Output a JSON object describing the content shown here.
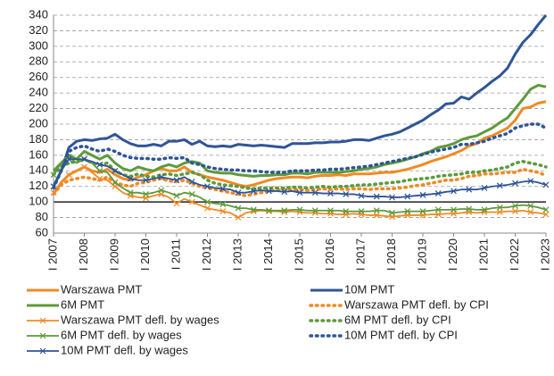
{
  "chart_data": {
    "type": "line",
    "categories": [
      "I 2007",
      null,
      null,
      null,
      "I 2008",
      null,
      null,
      null,
      "I 2009",
      null,
      null,
      null,
      "I 2010",
      null,
      null,
      null,
      "I 2011",
      null,
      null,
      null,
      "I 2012",
      null,
      null,
      null,
      "I 2013",
      null,
      null,
      null,
      "I 2014",
      null,
      null,
      null,
      "I 2015",
      null,
      null,
      null,
      "I 2016",
      null,
      null,
      null,
      "I 2017",
      null,
      null,
      null,
      "I 2018",
      null,
      null,
      null,
      "I 2019",
      null,
      null,
      null,
      "I 2020",
      null,
      null,
      null,
      "I 2021",
      null,
      null,
      null,
      "I 2022",
      null,
      null,
      null,
      "I 2023"
    ],
    "ylim": [
      60,
      340
    ],
    "yticks": [
      60,
      80,
      100,
      120,
      140,
      160,
      180,
      200,
      220,
      240,
      260,
      280,
      300,
      320,
      340
    ],
    "grid": true,
    "baseline": 100,
    "legend": "bottom",
    "series": [
      {
        "name": "Warszawa PMT",
        "color": "#f08a24",
        "style": "solid",
        "values": [
          110,
          125,
          135,
          140,
          145,
          140,
          138,
          142,
          135,
          130,
          128,
          132,
          135,
          140,
          143,
          140,
          140,
          145,
          138,
          135,
          132,
          130,
          128,
          125,
          122,
          120,
          122,
          125,
          128,
          130,
          131,
          132,
          132,
          131,
          133,
          134,
          134,
          135,
          134,
          136,
          136,
          136,
          137,
          138,
          138,
          140,
          142,
          145,
          148,
          152,
          155,
          158,
          162,
          166,
          172,
          175,
          182,
          185,
          190,
          195,
          205,
          220,
          222,
          227,
          229
        ]
      },
      {
        "name": "10M PMT",
        "color": "#2f5597",
        "style": "solid",
        "values": [
          120,
          140,
          170,
          178,
          180,
          179,
          181,
          182,
          187,
          180,
          175,
          172,
          172,
          174,
          172,
          178,
          178,
          180,
          174,
          178,
          172,
          171,
          172,
          171,
          174,
          173,
          172,
          173,
          172,
          171,
          170,
          175,
          175,
          175,
          176,
          176,
          177,
          177,
          178,
          180,
          180,
          179,
          182,
          185,
          187,
          190,
          195,
          200,
          205,
          212,
          218,
          226,
          227,
          235,
          232,
          240,
          247,
          255,
          262,
          272,
          290,
          305,
          315,
          328,
          340
        ]
      },
      {
        "name": "6M PMT",
        "color": "#5e9a3a",
        "style": "solid",
        "values": [
          140,
          150,
          160,
          155,
          165,
          160,
          155,
          160,
          150,
          143,
          140,
          145,
          142,
          140,
          145,
          148,
          145,
          150,
          152,
          150,
          140,
          138,
          137,
          137,
          135,
          134,
          133,
          134,
          134,
          135,
          135,
          137,
          137,
          136,
          138,
          138,
          138,
          138,
          139,
          140,
          142,
          143,
          145,
          148,
          150,
          152,
          155,
          158,
          162,
          165,
          170,
          172,
          175,
          180,
          183,
          185,
          190,
          195,
          202,
          208,
          220,
          232,
          245,
          250,
          248
        ]
      },
      {
        "name": "Warszawa PMT defl. by CPI",
        "color": "#f08a24",
        "style": "dotted",
        "values": [
          110,
          122,
          128,
          130,
          132,
          130,
          128,
          132,
          125,
          122,
          120,
          124,
          125,
          128,
          130,
          127,
          126,
          128,
          124,
          120,
          118,
          116,
          114,
          112,
          110,
          108,
          110,
          112,
          114,
          115,
          116,
          116,
          116,
          115,
          116,
          117,
          116,
          117,
          116,
          117,
          117,
          116,
          117,
          117,
          117,
          118,
          119,
          121,
          122,
          124,
          126,
          128,
          128,
          130,
          133,
          134,
          136,
          136,
          137,
          138,
          138,
          142,
          140,
          138,
          134
        ]
      },
      {
        "name": "Warszawa PMT defl. by wages",
        "color": "#f08a24",
        "style": "cross",
        "values": [
          112,
          125,
          135,
          140,
          145,
          138,
          130,
          128,
          120,
          112,
          108,
          106,
          105,
          108,
          110,
          106,
          98,
          104,
          100,
          96,
          92,
          90,
          88,
          86,
          80,
          86,
          88,
          89,
          88,
          88,
          87,
          88,
          87,
          86,
          86,
          85,
          85,
          84,
          84,
          85,
          84,
          83,
          83,
          82,
          81,
          82,
          83,
          83,
          83,
          84,
          84,
          85,
          85,
          86,
          87,
          86,
          87,
          87,
          87,
          88,
          88,
          89,
          87,
          86,
          84
        ]
      },
      {
        "name": "6M PMT defl. by CPI",
        "color": "#5e9a3a",
        "style": "dotted",
        "values": [
          135,
          145,
          150,
          152,
          155,
          150,
          148,
          150,
          140,
          135,
          133,
          136,
          133,
          132,
          135,
          136,
          134,
          136,
          138,
          135,
          128,
          124,
          122,
          121,
          120,
          118,
          117,
          118,
          118,
          118,
          118,
          119,
          119,
          118,
          119,
          120,
          119,
          120,
          120,
          121,
          122,
          122,
          123,
          124,
          125,
          126,
          128,
          129,
          130,
          131,
          133,
          134,
          135,
          136,
          138,
          138,
          140,
          141,
          143,
          145,
          150,
          152,
          150,
          148,
          145
        ]
      },
      {
        "name": "6M PMT defl. by wages",
        "color": "#5e9a3a",
        "style": "cross",
        "values": [
          135,
          150,
          158,
          150,
          155,
          150,
          140,
          138,
          125,
          118,
          112,
          112,
          110,
          112,
          115,
          112,
          108,
          112,
          110,
          106,
          100,
          98,
          97,
          95,
          92,
          92,
          90,
          90,
          89,
          89,
          89,
          90,
          90,
          89,
          89,
          89,
          89,
          89,
          88,
          88,
          88,
          88,
          89,
          89,
          86,
          87,
          88,
          88,
          88,
          89,
          90,
          90,
          90,
          91,
          91,
          90,
          90,
          92,
          93,
          93,
          95,
          96,
          95,
          93,
          90
        ]
      },
      {
        "name": "10M PMT defl. by CPI",
        "color": "#2f5597",
        "style": "dotted",
        "values": [
          118,
          140,
          165,
          170,
          172,
          168,
          165,
          168,
          165,
          160,
          157,
          156,
          156,
          155,
          155,
          157,
          156,
          157,
          150,
          148,
          145,
          143,
          142,
          141,
          141,
          140,
          140,
          139,
          138,
          138,
          138,
          140,
          140,
          140,
          141,
          141,
          142,
          142,
          143,
          144,
          145,
          146,
          148,
          150,
          152,
          154,
          156,
          158,
          161,
          164,
          166,
          168,
          170,
          174,
          174,
          176,
          178,
          182,
          185,
          188,
          195,
          198,
          200,
          200,
          195
        ]
      },
      {
        "name": "10M PMT defl. by wages",
        "color": "#2f5597",
        "style": "cross",
        "values": [
          120,
          140,
          155,
          155,
          155,
          152,
          148,
          146,
          140,
          135,
          130,
          128,
          128,
          130,
          132,
          130,
          128,
          132,
          126,
          122,
          120,
          118,
          117,
          116,
          112,
          112,
          114,
          115,
          114,
          114,
          113,
          114,
          112,
          112,
          112,
          111,
          111,
          111,
          110,
          110,
          108,
          107,
          107,
          107,
          106,
          106,
          107,
          108,
          109,
          110,
          111,
          113,
          114,
          116,
          116,
          116,
          118,
          120,
          121,
          122,
          124,
          126,
          127,
          125,
          122
        ]
      }
    ]
  }
}
